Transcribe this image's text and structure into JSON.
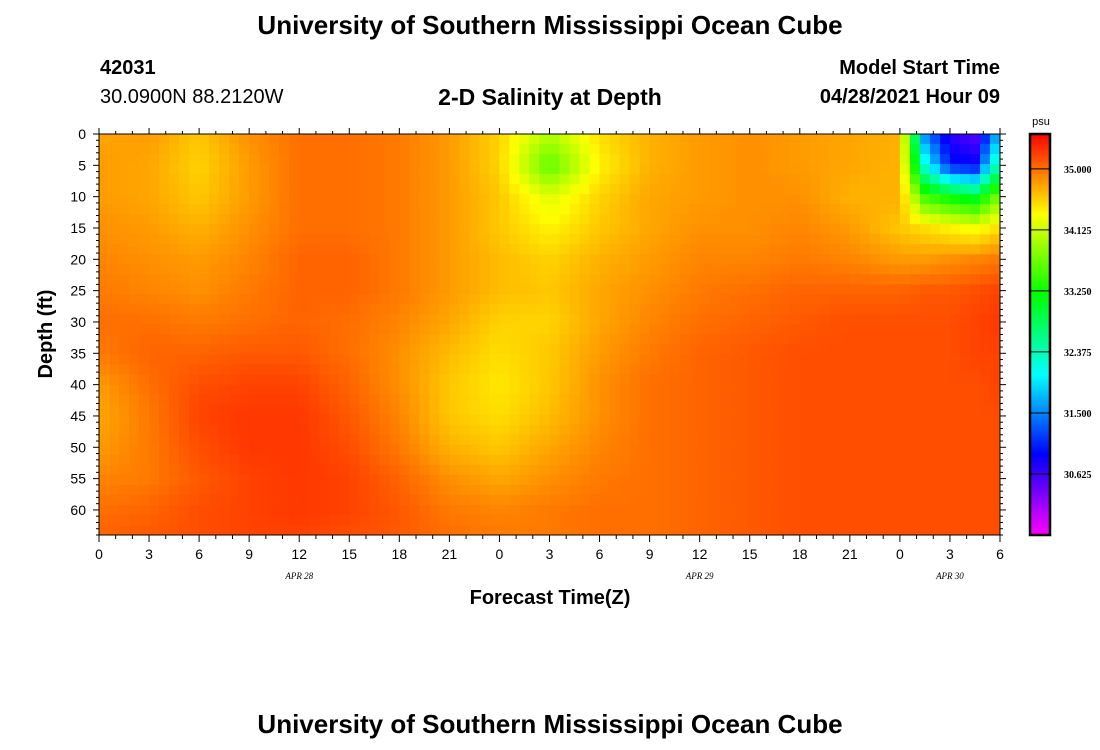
{
  "header": {
    "title": "University of Southern Mississippi Ocean Cube",
    "station_id": "42031",
    "coords": "30.0900N  88.2120W",
    "plot_title": "2-D Salinity at Depth",
    "model_start_label": "Model Start Time",
    "model_start_value": "04/28/2021 Hour 09"
  },
  "footer": {
    "title": "University of Southern Mississippi Ocean Cube"
  },
  "chart_data": {
    "type": "heatmap",
    "title": "2-D Salinity at Depth",
    "xlabel": "Forecast Time(Z)",
    "ylabel": "Depth (ft)",
    "colorbar_unit": "psu",
    "colorbar_ticks": [
      30.625,
      31.5,
      32.375,
      33.25,
      34.125,
      35.0
    ],
    "colorbar_tick_labels": [
      "30.625",
      "31.500",
      "32.375",
      "33.250",
      "34.125",
      "35.000"
    ],
    "colorbar_range": [
      29.75,
      35.5
    ],
    "x_ticks_hours": [
      0,
      3,
      6,
      9,
      12,
      15,
      18,
      21,
      24,
      27,
      30,
      33,
      36,
      39,
      42,
      45,
      48,
      51,
      54
    ],
    "x_tick_labels": [
      "0",
      "3",
      "6",
      "9",
      "12",
      "15",
      "18",
      "21",
      "0",
      "3",
      "6",
      "9",
      "12",
      "15",
      "18",
      "21",
      "0",
      "3",
      "6"
    ],
    "x_range_hours": [
      0,
      54
    ],
    "date_labels": [
      {
        "hour": 12,
        "label": "APR 28"
      },
      {
        "hour": 36,
        "label": "APR 29"
      },
      {
        "hour": 51,
        "label": "APR 30"
      }
    ],
    "y_ticks": [
      0,
      5,
      10,
      15,
      20,
      25,
      30,
      35,
      40,
      45,
      50,
      55,
      60
    ],
    "y_range": [
      0,
      64
    ],
    "depths": [
      0,
      5,
      10,
      15,
      20,
      25,
      30,
      35,
      40,
      45,
      50,
      55,
      60,
      64
    ],
    "times_hours": [
      0,
      3,
      6,
      9,
      12,
      15,
      18,
      21,
      24,
      27,
      30,
      33,
      36,
      39,
      42,
      45,
      48,
      49.5,
      51,
      52.5,
      54
    ],
    "salinity": [
      [
        34.75,
        34.8,
        34.6,
        34.85,
        35.0,
        35.0,
        34.95,
        34.8,
        34.55,
        34.0,
        34.5,
        34.7,
        34.8,
        34.85,
        34.8,
        34.75,
        34.7,
        31.5,
        30.7,
        30.5,
        31.8
      ],
      [
        34.8,
        34.75,
        34.55,
        34.8,
        35.0,
        35.0,
        34.95,
        34.8,
        34.55,
        33.6,
        34.4,
        34.7,
        34.8,
        34.85,
        34.8,
        34.75,
        34.7,
        32.2,
        31.0,
        30.9,
        32.6
      ],
      [
        34.8,
        34.75,
        34.6,
        34.8,
        35.0,
        35.0,
        34.95,
        34.8,
        34.6,
        34.2,
        34.55,
        34.75,
        34.8,
        34.85,
        34.85,
        34.7,
        34.7,
        33.5,
        33.2,
        33.0,
        33.8
      ],
      [
        34.85,
        34.8,
        34.7,
        34.85,
        35.0,
        35.0,
        34.95,
        34.8,
        34.6,
        34.4,
        34.6,
        34.75,
        34.85,
        34.85,
        34.9,
        34.8,
        34.6,
        34.5,
        34.4,
        34.3,
        34.5
      ],
      [
        34.9,
        34.85,
        34.8,
        34.9,
        35.05,
        35.05,
        34.95,
        34.8,
        34.65,
        34.55,
        34.7,
        34.8,
        34.9,
        34.9,
        34.95,
        34.9,
        34.8,
        34.8,
        34.85,
        34.9,
        34.95
      ],
      [
        34.95,
        34.9,
        34.85,
        34.95,
        35.05,
        35.05,
        34.95,
        34.8,
        34.65,
        34.6,
        34.75,
        34.85,
        34.95,
        35.0,
        35.05,
        35.05,
        35.05,
        35.1,
        35.1,
        35.15,
        35.2
      ],
      [
        35.0,
        35.0,
        34.95,
        35.0,
        35.05,
        35.0,
        34.9,
        34.75,
        34.55,
        34.55,
        34.75,
        34.9,
        35.0,
        35.05,
        35.1,
        35.15,
        35.15,
        35.15,
        35.15,
        35.2,
        35.25
      ],
      [
        34.95,
        35.05,
        35.05,
        35.1,
        35.1,
        35.0,
        34.85,
        34.65,
        34.5,
        34.6,
        34.8,
        34.95,
        35.05,
        35.1,
        35.15,
        35.15,
        35.15,
        35.15,
        35.15,
        35.2,
        35.2
      ],
      [
        34.8,
        35.0,
        35.15,
        35.2,
        35.2,
        35.05,
        34.85,
        34.6,
        34.45,
        34.6,
        34.85,
        35.0,
        35.05,
        35.1,
        35.15,
        35.15,
        35.15,
        35.15,
        35.15,
        35.15,
        35.2
      ],
      [
        34.75,
        34.95,
        35.2,
        35.25,
        35.25,
        35.1,
        34.9,
        34.6,
        34.5,
        34.65,
        34.85,
        35.0,
        35.05,
        35.1,
        35.15,
        35.15,
        35.15,
        35.15,
        35.15,
        35.15,
        35.15
      ],
      [
        34.8,
        34.95,
        35.15,
        35.25,
        35.25,
        35.15,
        34.95,
        34.7,
        34.6,
        34.75,
        34.9,
        35.0,
        35.05,
        35.1,
        35.15,
        35.15,
        35.15,
        35.15,
        35.15,
        35.15,
        35.15
      ],
      [
        34.9,
        34.95,
        35.1,
        35.2,
        35.25,
        35.2,
        35.05,
        34.85,
        34.75,
        34.85,
        34.95,
        35.0,
        35.05,
        35.1,
        35.15,
        35.15,
        35.15,
        35.15,
        35.15,
        35.15,
        35.15
      ],
      [
        35.0,
        35.05,
        35.15,
        35.2,
        35.25,
        35.2,
        35.1,
        34.95,
        34.9,
        34.95,
        35.0,
        35.0,
        35.05,
        35.1,
        35.15,
        35.15,
        35.15,
        35.15,
        35.15,
        35.15,
        35.15
      ],
      [
        35.05,
        35.1,
        35.15,
        35.2,
        35.2,
        35.15,
        35.1,
        35.0,
        34.95,
        34.95,
        35.0,
        35.0,
        35.05,
        35.1,
        35.15,
        35.15,
        35.15,
        35.15,
        35.15,
        35.15,
        35.15
      ]
    ]
  }
}
